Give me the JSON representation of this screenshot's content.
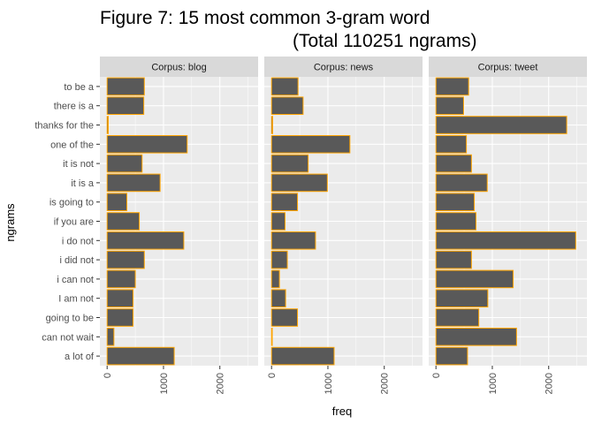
{
  "chart_data": {
    "type": "bar",
    "orientation": "horizontal",
    "title_line1": "Figure 7: 15 most common 3-gram word",
    "title_line2": "(Total 110251 ngrams)",
    "xlabel": "freq",
    "ylabel": "ngrams",
    "xlim": [
      0,
      2550
    ],
    "xticks": [
      0,
      1000,
      2000
    ],
    "grid": true,
    "bar_fill": "#595959",
    "bar_outline": "#FFA500",
    "panel_bg": "#EBEBEB",
    "strip_bg": "#D9D9D9",
    "categories": [
      "to be a",
      "there is a",
      "thanks for the",
      "one of the",
      "it is not",
      "it is a",
      "is going to",
      "if you are",
      "i do not",
      "i did not",
      "i can not",
      "I am not",
      "going to be",
      "can not wait",
      "a lot of"
    ],
    "facets": [
      {
        "name": "Corpus: blog",
        "values": [
          660,
          650,
          20,
          1420,
          620,
          940,
          350,
          570,
          1360,
          660,
          500,
          460,
          460,
          120,
          1190
        ]
      },
      {
        "name": "Corpus: news",
        "values": [
          470,
          560,
          20,
          1390,
          650,
          990,
          460,
          240,
          780,
          280,
          140,
          250,
          460,
          10,
          1110
        ]
      },
      {
        "name": "Corpus: tweet",
        "values": [
          580,
          490,
          2320,
          540,
          630,
          910,
          680,
          710,
          2480,
          630,
          1370,
          920,
          760,
          1430,
          560
        ]
      }
    ]
  }
}
